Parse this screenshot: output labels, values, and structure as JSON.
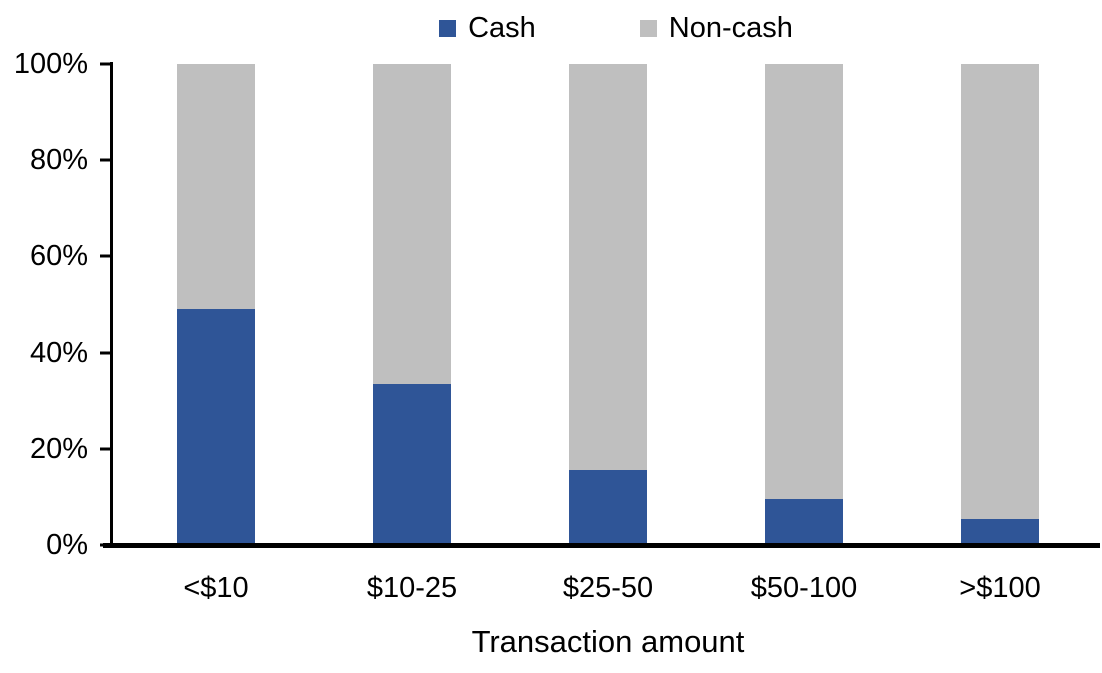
{
  "chart_data": {
    "type": "bar",
    "stacked": true,
    "orientation": "vertical",
    "title": "",
    "xlabel": "Transaction amount",
    "ylabel": "",
    "categories": [
      "<$10",
      "$10-25",
      "$25-50",
      "$50-100",
      ">$100"
    ],
    "series": [
      {
        "name": "Cash",
        "color": "#2F5597",
        "values": [
          49,
          33.5,
          15.6,
          9.6,
          5.5
        ]
      },
      {
        "name": "Non-cash",
        "color": "#BFBFBF",
        "values": [
          51,
          66.5,
          84.4,
          90.4,
          94.5
        ]
      }
    ],
    "ylim": [
      0,
      100
    ],
    "yticks": [
      "0%",
      "20%",
      "40%",
      "60%",
      "80%",
      "100%"
    ],
    "legend_position": "top-center",
    "grid": false,
    "axis_color": "#000000",
    "background_color": "#FFFFFF"
  }
}
